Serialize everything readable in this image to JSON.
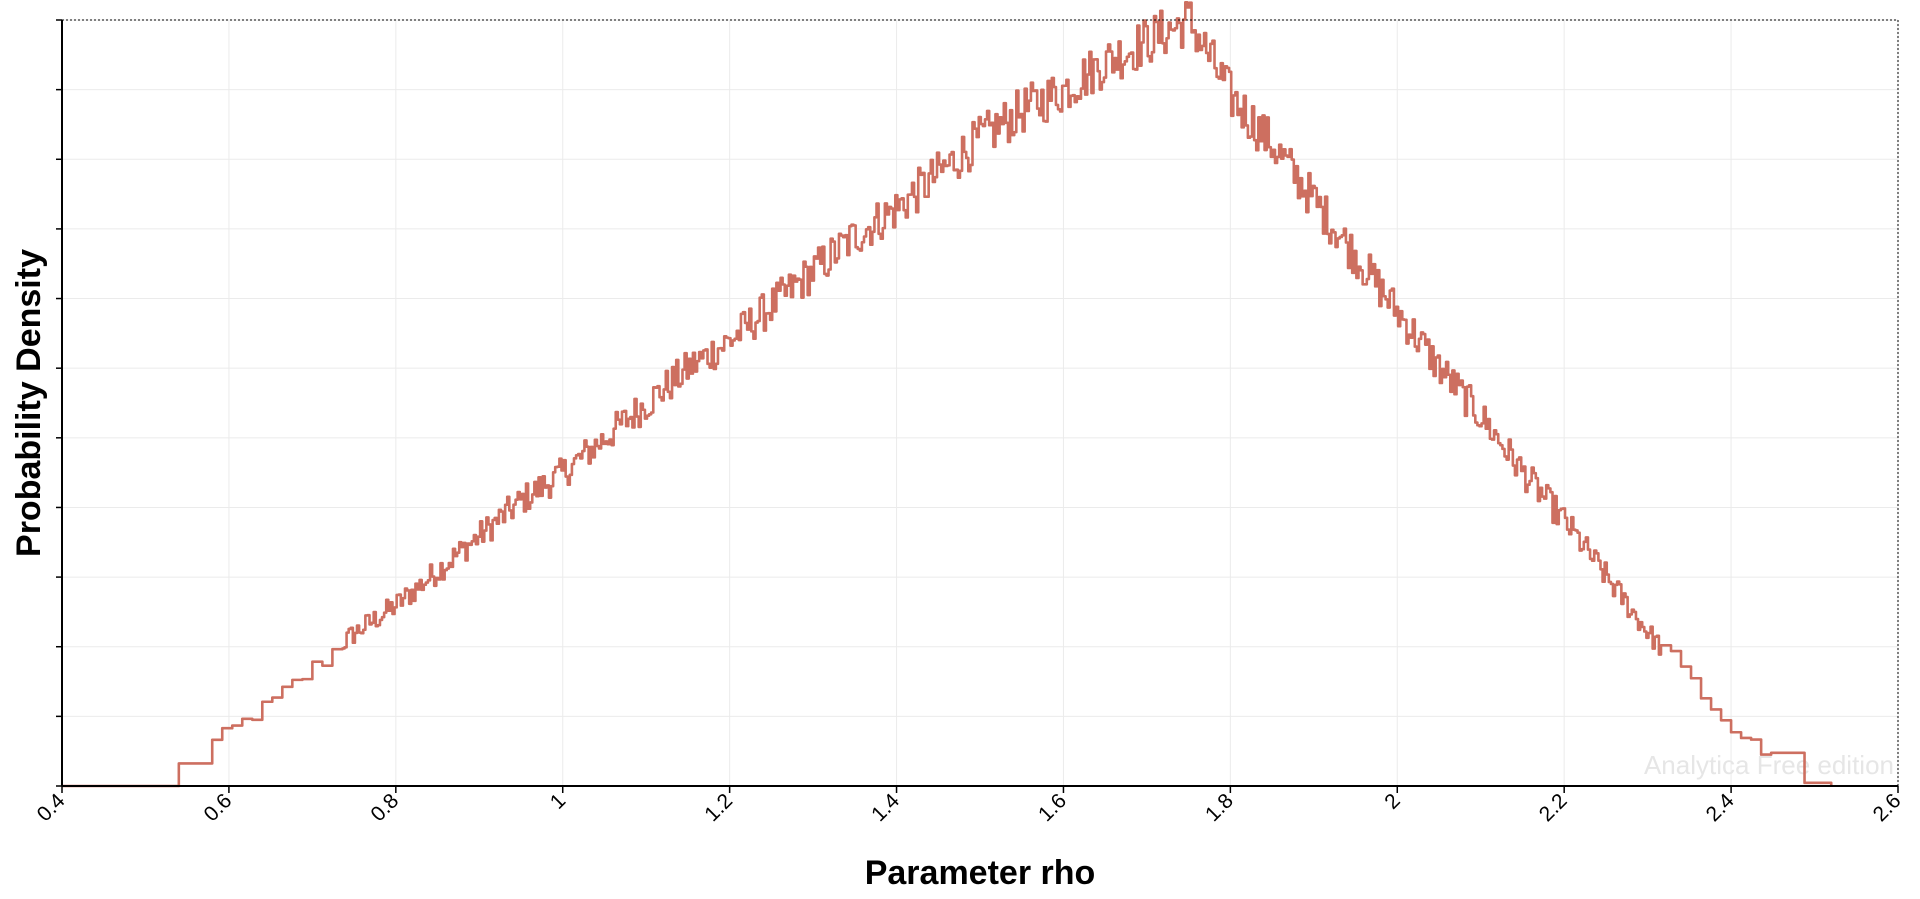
{
  "chart_data": {
    "type": "line",
    "title": "",
    "xlabel": "Parameter rho",
    "ylabel": "Probability Density",
    "xlim": [
      0.4,
      2.6
    ],
    "ylim": [
      0,
      1.1
    ],
    "x_ticks": [
      "0.4",
      "0.6",
      "0.8",
      "1",
      "1.2",
      "1.4",
      "1.6",
      "1.8",
      "2",
      "2.2",
      "2.4",
      "2.6"
    ],
    "y_ticks_labeled": false,
    "grid": true,
    "legend": "none",
    "series": [
      {
        "color": "#cd6f60",
        "x": [
          0.4,
          0.5,
          0.51,
          0.55,
          0.6,
          0.65,
          0.7,
          0.75,
          0.8,
          0.85,
          0.9,
          0.95,
          1.0,
          1.05,
          1.1,
          1.15,
          1.2,
          1.25,
          1.3,
          1.35,
          1.4,
          1.45,
          1.5,
          1.55,
          1.6,
          1.65,
          1.7,
          1.75,
          1.8,
          1.85,
          1.9,
          1.95,
          2.0,
          2.05,
          2.1,
          2.15,
          2.2,
          2.25,
          2.3,
          2.35,
          2.4,
          2.45,
          2.46,
          2.5,
          2.52
        ],
        "y": [
          0.0,
          0.0,
          0.02,
          0.04,
          0.08,
          0.12,
          0.17,
          0.22,
          0.26,
          0.31,
          0.36,
          0.41,
          0.45,
          0.5,
          0.55,
          0.6,
          0.64,
          0.69,
          0.74,
          0.79,
          0.83,
          0.88,
          0.93,
          0.97,
          1.0,
          1.04,
          1.07,
          1.1,
          0.99,
          0.92,
          0.84,
          0.76,
          0.68,
          0.6,
          0.53,
          0.45,
          0.38,
          0.3,
          0.22,
          0.15,
          0.08,
          0.04,
          0.02,
          0.0,
          0.0
        ]
      }
    ],
    "watermark": "Analytica Free edition"
  }
}
